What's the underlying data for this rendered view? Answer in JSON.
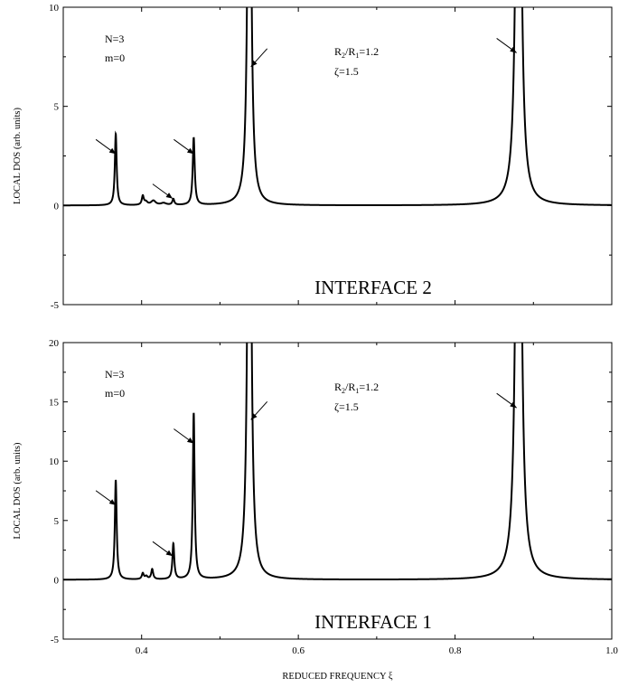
{
  "chart_data": [
    {
      "type": "line",
      "panel": "top",
      "xlabel": "",
      "ylabel": "LOCAL DOS (arb. units)",
      "xlim": [
        0.3,
        1.0
      ],
      "ylim": [
        -5,
        10
      ],
      "yticks": [
        -5,
        0,
        5,
        10
      ],
      "yticklabels": [
        "-5",
        "0",
        "5",
        "10"
      ],
      "annotations": {
        "n": "N=3",
        "m": "m=0",
        "ratio": {
          "r2": "R",
          "sub2": "2",
          "slash": "/R",
          "sub1": "1",
          "value": "=1.2"
        },
        "zeta": "ζ=1.5",
        "interface": "INTERFACE 2"
      },
      "peaks": [
        {
          "x": 0.367,
          "height": 3.6,
          "width": 0.0014
        },
        {
          "x": 0.4015,
          "height": 0.45,
          "width": 0.0015
        },
        {
          "x": 0.4055,
          "height": 0.15,
          "width": 0.0025
        },
        {
          "x": 0.415,
          "height": 0.22,
          "width": 0.0035
        },
        {
          "x": 0.428,
          "height": 0.1,
          "width": 0.004
        },
        {
          "x": 0.4405,
          "height": 0.3,
          "width": 0.0015
        },
        {
          "x": 0.4665,
          "height": 3.4,
          "width": 0.0015
        },
        {
          "x": 0.5375,
          "height": 30,
          "width": 0.0022
        },
        {
          "x": 0.881,
          "height": 40,
          "width": 0.0028
        }
      ],
      "arrows": [
        {
          "x": 0.367,
          "y": 2.6,
          "dir": "left"
        },
        {
          "x": 0.4395,
          "y": 0.35,
          "dir": "left"
        },
        {
          "x": 0.4665,
          "y": 2.6,
          "dir": "left"
        },
        {
          "x": 0.5395,
          "y": 7.0,
          "dir": "right"
        },
        {
          "x": 0.8785,
          "y": 7.7,
          "dir": "left"
        }
      ]
    },
    {
      "type": "line",
      "panel": "bottom",
      "xlabel": "REDUCED FREQUENCY  ξ",
      "ylabel": "LOCAL DOS (arb. units)",
      "xlim": [
        0.3,
        1.0
      ],
      "ylim": [
        -5,
        20
      ],
      "xticks": [
        0.4,
        0.6,
        0.8,
        1.0
      ],
      "xticklabels": [
        "0.4",
        "0.6",
        "0.8",
        "1.0"
      ],
      "yticks": [
        -5,
        0,
        5,
        10,
        15,
        20
      ],
      "yticklabels": [
        "-5",
        "0",
        "5",
        "10",
        "15",
        "20"
      ],
      "annotations": {
        "n": "N=3",
        "m": "m=0",
        "ratio": {
          "r2": "R",
          "sub2": "2",
          "slash": "/R",
          "sub1": "1",
          "value": "=1.2"
        },
        "zeta": "ζ=1.5",
        "interface": "INTERFACE 1"
      },
      "peaks": [
        {
          "x": 0.367,
          "height": 8.4,
          "width": 0.0014
        },
        {
          "x": 0.4015,
          "height": 0.5,
          "width": 0.0015
        },
        {
          "x": 0.406,
          "height": 0.25,
          "width": 0.002
        },
        {
          "x": 0.4135,
          "height": 0.85,
          "width": 0.0015
        },
        {
          "x": 0.4405,
          "height": 3.0,
          "width": 0.0014
        },
        {
          "x": 0.4665,
          "height": 14.0,
          "width": 0.0014
        },
        {
          "x": 0.5375,
          "height": 60,
          "width": 0.0022
        },
        {
          "x": 0.881,
          "height": 80,
          "width": 0.0028
        }
      ],
      "arrows": [
        {
          "x": 0.367,
          "y": 6.3,
          "dir": "left"
        },
        {
          "x": 0.4395,
          "y": 2.0,
          "dir": "left"
        },
        {
          "x": 0.4665,
          "y": 11.5,
          "dir": "left"
        },
        {
          "x": 0.5395,
          "y": 13.5,
          "dir": "right"
        },
        {
          "x": 0.8785,
          "y": 14.5,
          "dir": "left"
        }
      ]
    }
  ]
}
